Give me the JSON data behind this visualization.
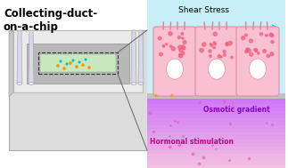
{
  "title_text": "Collecting-duct-\non-a-chip",
  "shear_stress_label": "Shear Stress",
  "osmotic_label": "Osmotic gradient",
  "hormonal_label": "Hormonal stimulation",
  "bg_color": "#ffffff",
  "chip_body_color": "#e8e8e8",
  "chip_inner_color": "#d0d0d0",
  "chip_base_color": "#c8c8c8",
  "cell_bg_top": "#b8eef5",
  "cell_bg_gradient_start": "#d0f0f8",
  "cell_body_color": "#f7b8c8",
  "cell_border_color": "#e8a0b0",
  "membrane_color": "#c0c0c0",
  "bottom_gradient_left": "#f0c0e0",
  "bottom_gradient_right": "#d0a0e8",
  "arrow_color": "#00aacc",
  "dotted_arrow_color": "#80ccdd",
  "osmotic_text_color": "#8800cc",
  "hormonal_text_color": "#cc0088",
  "title_color": "#000000",
  "shear_color": "#000000"
}
